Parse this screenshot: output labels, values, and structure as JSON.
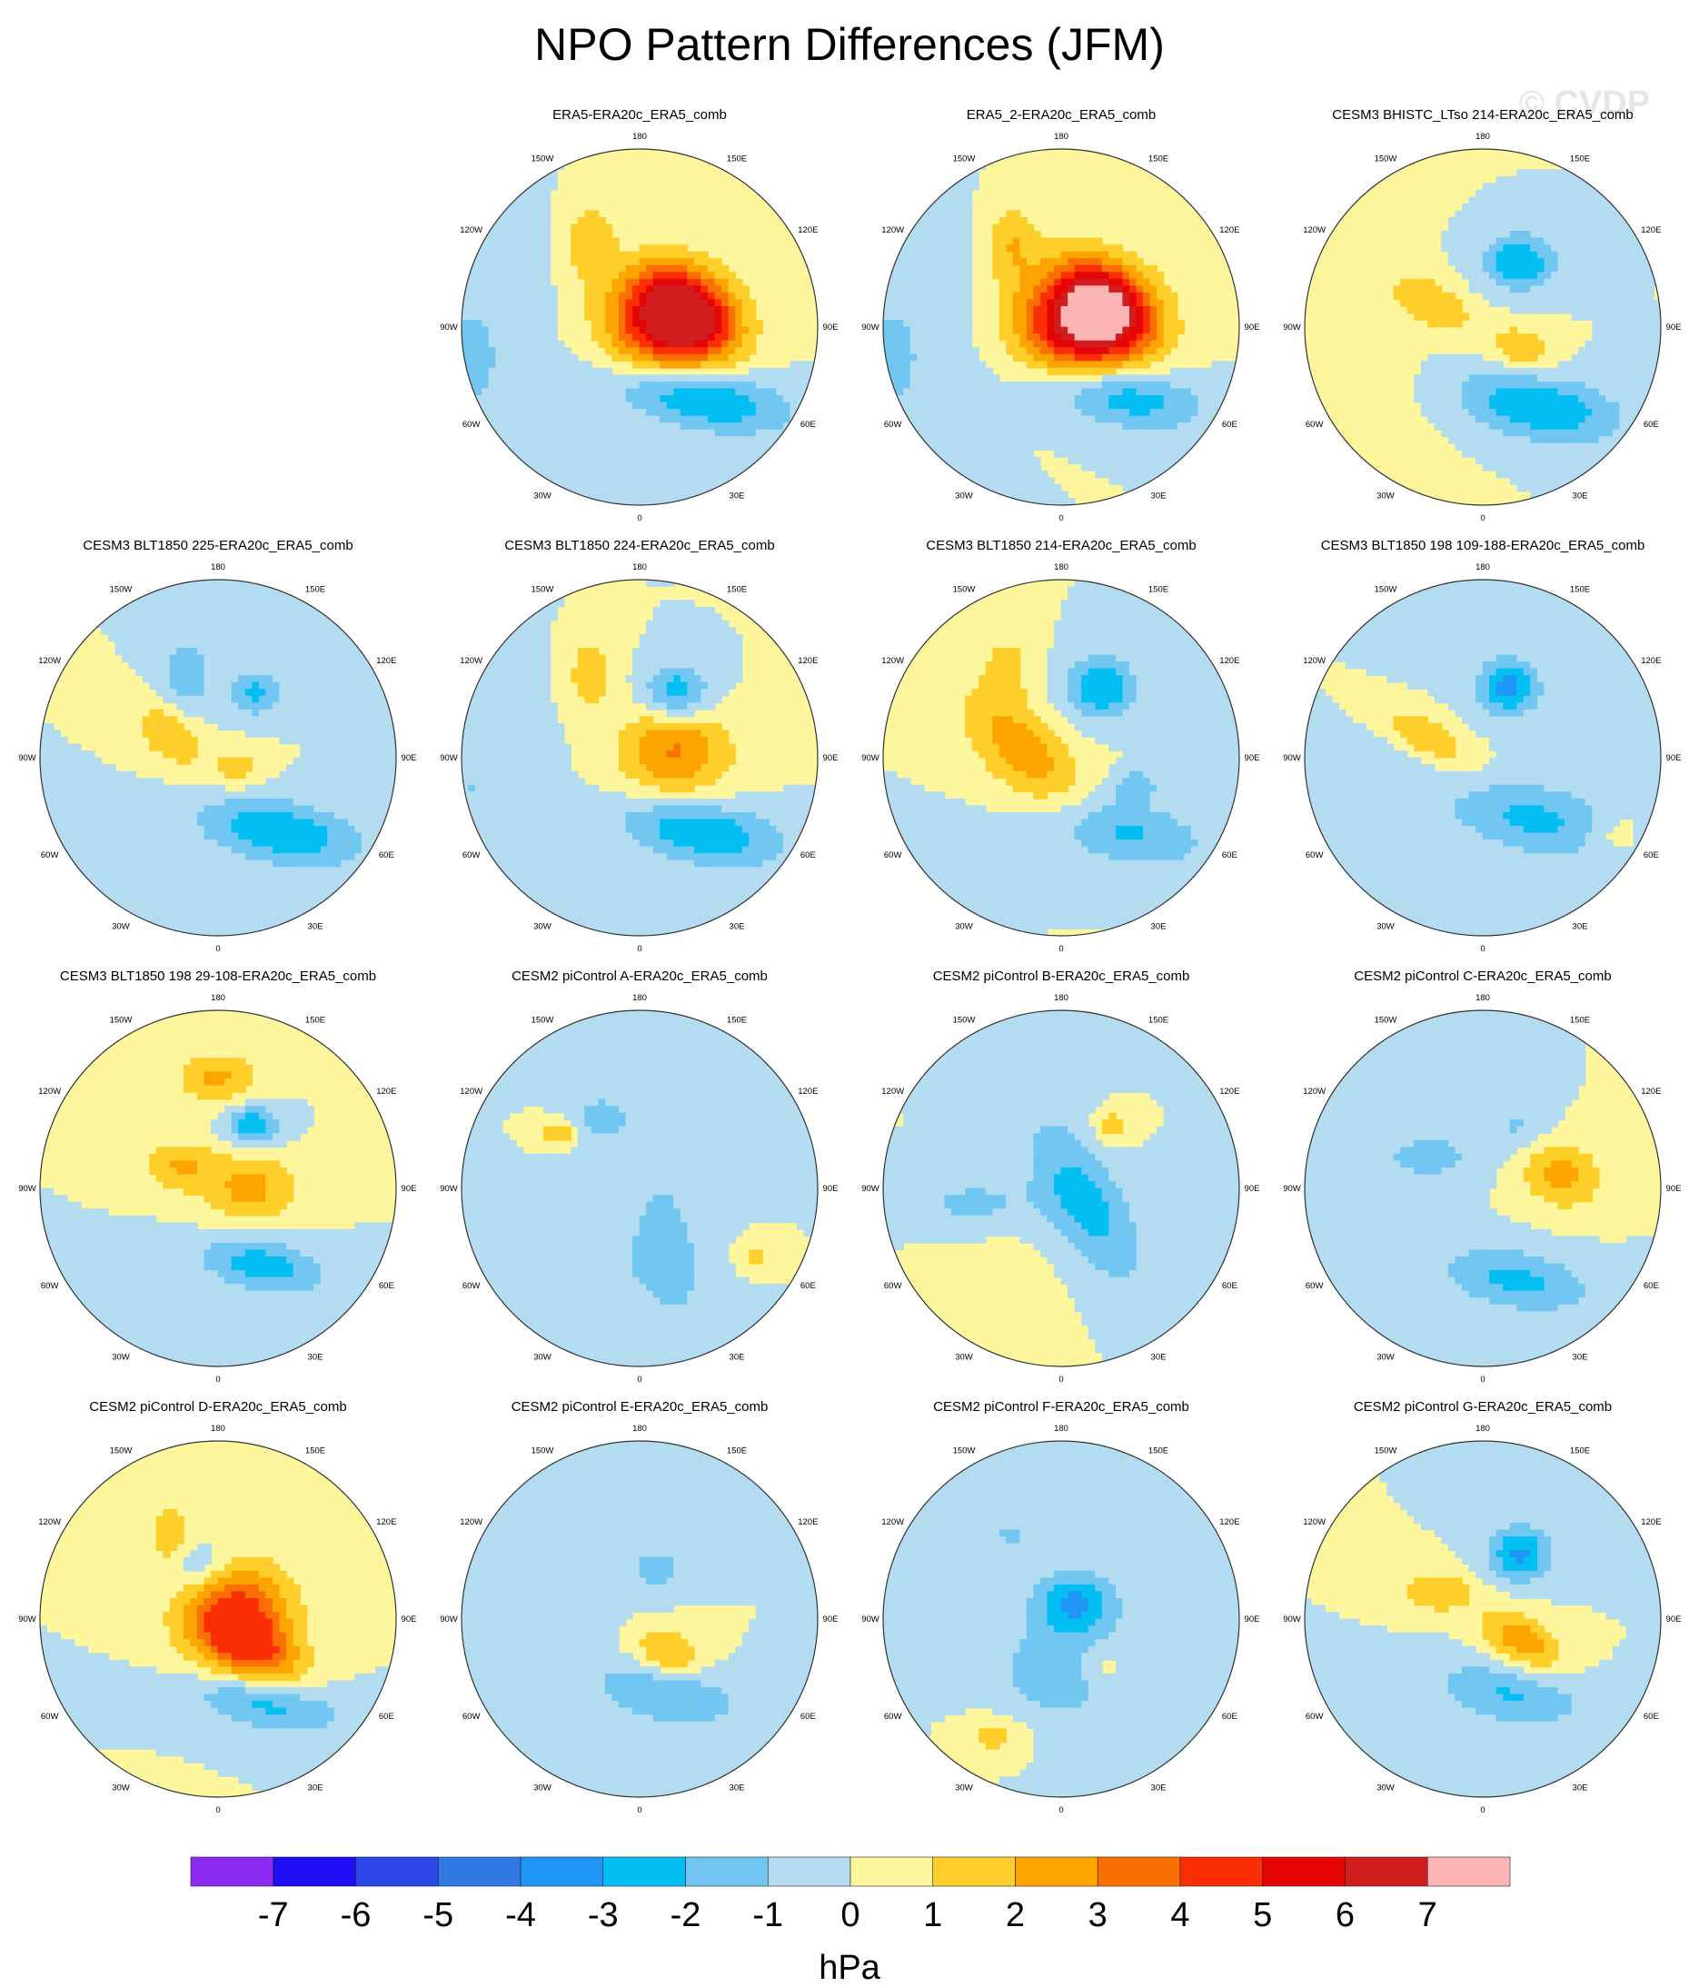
{
  "page_title": "NPO Pattern Differences (JFM)",
  "watermark": "© CVDP",
  "chart_data": {
    "type": "heatmap",
    "title": "NPO Pattern Differences (JFM)",
    "projection": "north-polar-stereographic",
    "grid": true,
    "longitude_labels": [
      "180",
      "150E",
      "120E",
      "90E",
      "60E",
      "30E",
      "0",
      "30W",
      "60W",
      "90W",
      "120W",
      "150W"
    ],
    "colorbar": {
      "units": "hPa",
      "orientation": "horizontal",
      "placement": "bottom",
      "tick_labels": [
        "-7",
        "-6",
        "-5",
        "-4",
        "-3",
        "-2",
        "-1",
        "0",
        "1",
        "2",
        "3",
        "4",
        "5",
        "6",
        "7"
      ],
      "colors": [
        "#8c2cf0",
        "#1c0df5",
        "#2b45e8",
        "#3279e6",
        "#1f96f5",
        "#03bff2",
        "#71c6f2",
        "#b4dcf0",
        "#fdf69c",
        "#fecf2a",
        "#fca500",
        "#fa7005",
        "#fc2e05",
        "#e60505",
        "#d11d1d",
        "#fcb4b4"
      ]
    },
    "panels": [
      {
        "title": "ERA5-ERA20c_ERA5_comb",
        "min": -3.2,
        "max": 6.9,
        "blobs": [
          {
            "lon": 100,
            "r": 0.18,
            "a": 0.24,
            "b": 0.2,
            "rot": 0,
            "v": 6.6
          },
          {
            "lon": 110,
            "r": 0.28,
            "a": 0.22,
            "b": 0.13,
            "rot": 40,
            "v": 3.0
          },
          {
            "lon": 40,
            "r": 0.52,
            "a": 0.34,
            "b": 0.12,
            "rot": 10,
            "v": -3.3
          },
          {
            "lon": -150,
            "r": 0.55,
            "a": 0.16,
            "b": 0.1,
            "rot": 90,
            "v": 1.8
          },
          {
            "lon": -80,
            "r": 0.95,
            "a": 0.25,
            "b": 0.5,
            "rot": 0,
            "v": -1.1
          }
        ]
      },
      {
        "title": "ERA5_2-ERA20c_ERA5_comb",
        "min": -3.0,
        "max": 7.4,
        "blobs": [
          {
            "lon": 100,
            "r": 0.14,
            "a": 0.25,
            "b": 0.21,
            "rot": 0,
            "v": 7.5
          },
          {
            "lon": 120,
            "r": 0.3,
            "a": 0.22,
            "b": 0.13,
            "rot": 40,
            "v": 3.0
          },
          {
            "lon": 40,
            "r": 0.5,
            "a": 0.32,
            "b": 0.12,
            "rot": 10,
            "v": -3.0
          },
          {
            "lon": -150,
            "r": 0.55,
            "a": 0.16,
            "b": 0.1,
            "rot": 90,
            "v": 1.8
          },
          {
            "lon": -80,
            "r": 0.95,
            "a": 0.25,
            "b": 0.5,
            "rot": 0,
            "v": -1.1
          }
        ]
      },
      {
        "title": "CESM3 BHISTC_LTso 214-ERA20c_ERA5_comb",
        "min": -3.1,
        "max": 2.4,
        "blobs": [
          {
            "lon": 150,
            "r": 0.42,
            "a": 0.14,
            "b": 0.11,
            "rot": 0,
            "v": -3.0
          },
          {
            "lon": -115,
            "r": 0.32,
            "a": 0.18,
            "b": 0.09,
            "rot": 30,
            "v": 1.9
          },
          {
            "lon": 60,
            "r": 0.25,
            "a": 0.14,
            "b": 0.09,
            "rot": 20,
            "v": 1.8
          },
          {
            "lon": 35,
            "r": 0.55,
            "a": 0.32,
            "b": 0.13,
            "rot": 10,
            "v": -3.0
          },
          {
            "lon": -60,
            "r": 0.95,
            "a": 0.35,
            "b": 0.45,
            "rot": 0,
            "v": 0.6
          }
        ]
      },
      {
        "title": "CESM3 BLT1850 225-ERA20c_ERA5_comb",
        "min": -3.1,
        "max": 2.2,
        "blobs": [
          {
            "lon": -160,
            "r": 0.5,
            "a": 0.16,
            "b": 0.11,
            "rot": 90,
            "v": -1.6
          },
          {
            "lon": 150,
            "r": 0.42,
            "a": 0.1,
            "b": 0.09,
            "rot": 0,
            "v": -2.3
          },
          {
            "lon": -115,
            "r": 0.3,
            "a": 0.16,
            "b": 0.1,
            "rot": 40,
            "v": 2.0
          },
          {
            "lon": 40,
            "r": 0.55,
            "a": 0.32,
            "b": 0.12,
            "rot": 10,
            "v": -3.0
          },
          {
            "lon": 60,
            "r": 0.12,
            "a": 0.1,
            "b": 0.08,
            "rot": 0,
            "v": 1.5
          }
        ]
      },
      {
        "title": "CESM3 BLT1850 224-ERA20c_ERA5_comb",
        "min": -3.1,
        "max": 3.4,
        "blobs": [
          {
            "lon": 150,
            "r": 0.42,
            "a": 0.13,
            "b": 0.11,
            "rot": 0,
            "v": -2.9
          },
          {
            "lon": 100,
            "r": 0.2,
            "a": 0.22,
            "b": 0.18,
            "rot": 0,
            "v": 3.1
          },
          {
            "lon": 40,
            "r": 0.55,
            "a": 0.32,
            "b": 0.12,
            "rot": 10,
            "v": -3.0
          },
          {
            "lon": -150,
            "r": 0.55,
            "a": 0.15,
            "b": 0.1,
            "rot": 90,
            "v": 1.6
          },
          {
            "lon": -80,
            "r": 0.95,
            "a": 0.25,
            "b": 0.5,
            "rot": 0,
            "v": -1.0
          }
        ]
      },
      {
        "title": "CESM3 BLT1850 214-ERA20c_ERA5_comb",
        "min": -2.9,
        "max": 2.7,
        "blobs": [
          {
            "lon": 150,
            "r": 0.45,
            "a": 0.14,
            "b": 0.12,
            "rot": 0,
            "v": -3.0
          },
          {
            "lon": -100,
            "r": 0.22,
            "a": 0.3,
            "b": 0.15,
            "rot": 45,
            "v": 2.6
          },
          {
            "lon": 40,
            "r": 0.55,
            "a": 0.32,
            "b": 0.13,
            "rot": 10,
            "v": -2.2
          },
          {
            "lon": 70,
            "r": 0.45,
            "a": 0.08,
            "b": 0.06,
            "rot": 0,
            "v": -1.8
          },
          {
            "lon": -150,
            "r": 0.6,
            "a": 0.14,
            "b": 0.1,
            "rot": 90,
            "v": 1.3
          }
        ]
      },
      {
        "title": "CESM3 BLT1850 198 109-188-ERA20c_ERA5_comb",
        "min": -3.4,
        "max": 2.2,
        "blobs": [
          {
            "lon": 160,
            "r": 0.42,
            "a": 0.12,
            "b": 0.11,
            "rot": 0,
            "v": -3.4
          },
          {
            "lon": -110,
            "r": 0.35,
            "a": 0.2,
            "b": 0.08,
            "rot": 30,
            "v": 2.0
          },
          {
            "lon": 40,
            "r": 0.45,
            "a": 0.32,
            "b": 0.14,
            "rot": 10,
            "v": -2.3
          },
          {
            "lon": 60,
            "r": 0.85,
            "a": 0.1,
            "b": 0.08,
            "rot": 0,
            "v": 1.0
          },
          {
            "lon": -60,
            "r": 0.6,
            "a": 0.2,
            "b": 0.3,
            "rot": 0,
            "v": -0.8
          }
        ]
      },
      {
        "title": "CESM3 BLT1850 198 29-108-ERA20c_ERA5_comb",
        "min": -3.0,
        "max": 2.6,
        "blobs": [
          {
            "lon": 180,
            "r": 0.62,
            "a": 0.16,
            "b": 0.1,
            "rot": 0,
            "v": 2.2
          },
          {
            "lon": 150,
            "r": 0.4,
            "a": 0.1,
            "b": 0.08,
            "rot": 0,
            "v": -2.9
          },
          {
            "lon": 90,
            "r": 0.18,
            "a": 0.18,
            "b": 0.14,
            "rot": 0,
            "v": 2.4
          },
          {
            "lon": 30,
            "r": 0.5,
            "a": 0.25,
            "b": 0.1,
            "rot": 10,
            "v": -2.6
          },
          {
            "lon": -120,
            "r": 0.25,
            "a": 0.14,
            "b": 0.1,
            "rot": 0,
            "v": 2.0
          }
        ]
      },
      {
        "title": "CESM2 piControl A-ERA20c_ERA5_comb",
        "min": -1.8,
        "max": 2.0,
        "blobs": [
          {
            "lon": 30,
            "r": 0.35,
            "a": 0.5,
            "b": 0.16,
            "rot": 80,
            "v": -1.1
          },
          {
            "lon": -125,
            "r": 0.55,
            "a": 0.08,
            "b": 0.05,
            "rot": 0,
            "v": 1.8
          },
          {
            "lon": 60,
            "r": 0.75,
            "a": 0.08,
            "b": 0.06,
            "rot": 0,
            "v": 1.2
          },
          {
            "lon": -30,
            "r": 0.55,
            "a": 0.3,
            "b": 0.25,
            "rot": 0,
            "v": -0.9
          },
          {
            "lon": -150,
            "r": 0.45,
            "a": 0.12,
            "b": 0.1,
            "rot": 0,
            "v": -1.4
          }
        ]
      },
      {
        "title": "CESM2 piControl B-ERA20c_ERA5_comb",
        "min": -2.6,
        "max": 1.9,
        "blobs": [
          {
            "lon": 60,
            "r": 0.15,
            "a": 0.35,
            "b": 0.15,
            "rot": 60,
            "v": -2.5
          },
          {
            "lon": 140,
            "r": 0.45,
            "a": 0.07,
            "b": 0.06,
            "rot": 0,
            "v": 1.8
          },
          {
            "lon": -80,
            "r": 0.5,
            "a": 0.25,
            "b": 0.1,
            "rot": 0,
            "v": -1.3
          },
          {
            "lon": -30,
            "r": 0.7,
            "a": 0.25,
            "b": 0.25,
            "rot": 0,
            "v": 0.4
          }
        ]
      },
      {
        "title": "CESM2 piControl C-ERA20c_ERA5_comb",
        "min": -2.4,
        "max": 2.5,
        "blobs": [
          {
            "lon": 100,
            "r": 0.45,
            "a": 0.16,
            "b": 0.13,
            "rot": 20,
            "v": 2.4
          },
          {
            "lon": 20,
            "r": 0.55,
            "a": 0.3,
            "b": 0.12,
            "rot": 10,
            "v": -2.3
          },
          {
            "lon": -120,
            "r": 0.35,
            "a": 0.2,
            "b": 0.1,
            "rot": 0,
            "v": -1.5
          },
          {
            "lon": 150,
            "r": 0.4,
            "a": 0.12,
            "b": 0.1,
            "rot": 0,
            "v": -1.2
          }
        ]
      },
      {
        "title": "CESM2 piControl D-ERA20c_ERA5_comb",
        "min": -2.6,
        "max": 4.6,
        "blobs": [
          {
            "lon": 105,
            "r": 0.1,
            "a": 0.22,
            "b": 0.2,
            "rot": 0,
            "v": 4.6
          },
          {
            "lon": 50,
            "r": 0.3,
            "a": 0.2,
            "b": 0.12,
            "rot": 30,
            "v": 3.0
          },
          {
            "lon": 30,
            "r": 0.55,
            "a": 0.3,
            "b": 0.1,
            "rot": 10,
            "v": -2.5
          },
          {
            "lon": -150,
            "r": 0.55,
            "a": 0.12,
            "b": 0.08,
            "rot": 90,
            "v": 1.8
          },
          {
            "lon": -160,
            "r": 0.3,
            "a": 0.12,
            "b": 0.1,
            "rot": 0,
            "v": -1.5
          }
        ]
      },
      {
        "title": "CESM2 piControl E-ERA20c_ERA5_comb",
        "min": -2.2,
        "max": 2.2,
        "blobs": [
          {
            "lon": 40,
            "r": 0.25,
            "a": 0.14,
            "b": 0.1,
            "rot": 20,
            "v": 2.2
          },
          {
            "lon": 20,
            "r": 0.45,
            "a": 0.3,
            "b": 0.12,
            "rot": 10,
            "v": -2.1
          },
          {
            "lon": 160,
            "r": 0.3,
            "a": 0.12,
            "b": 0.1,
            "rot": 0,
            "v": -1.4
          },
          {
            "lon": -100,
            "r": 0.4,
            "a": 0.2,
            "b": 0.12,
            "rot": 0,
            "v": -0.9
          }
        ]
      },
      {
        "title": "CESM2 piControl F-ERA20c_ERA5_comb",
        "min": -3.2,
        "max": 1.6,
        "blobs": [
          {
            "lon": 140,
            "r": 0.12,
            "a": 0.16,
            "b": 0.12,
            "rot": 0,
            "v": -3.1
          },
          {
            "lon": 0,
            "r": 0.3,
            "a": 0.28,
            "b": 0.2,
            "rot": 0,
            "v": -1.7
          },
          {
            "lon": -30,
            "r": 0.75,
            "a": 0.12,
            "b": 0.08,
            "rot": 0,
            "v": 1.5
          },
          {
            "lon": 40,
            "r": 0.35,
            "a": 0.1,
            "b": 0.08,
            "rot": 0,
            "v": 1.3
          },
          {
            "lon": -150,
            "r": 0.55,
            "a": 0.12,
            "b": 0.1,
            "rot": 0,
            "v": -1.1
          }
        ]
      },
      {
        "title": "CESM2 piControl G-ERA20c_ERA5_comb",
        "min": -3.2,
        "max": 2.7,
        "blobs": [
          {
            "lon": 150,
            "r": 0.42,
            "a": 0.12,
            "b": 0.11,
            "rot": 0,
            "v": -3.2
          },
          {
            "lon": 60,
            "r": 0.25,
            "a": 0.18,
            "b": 0.1,
            "rot": 30,
            "v": 2.7
          },
          {
            "lon": 20,
            "r": 0.45,
            "a": 0.3,
            "b": 0.12,
            "rot": 10,
            "v": -2.1
          },
          {
            "lon": -120,
            "r": 0.3,
            "a": 0.15,
            "b": 0.08,
            "rot": 0,
            "v": 1.9
          },
          {
            "lon": 120,
            "r": 0.8,
            "a": 0.12,
            "b": 0.1,
            "rot": 0,
            "v": -1.0
          }
        ]
      }
    ]
  }
}
